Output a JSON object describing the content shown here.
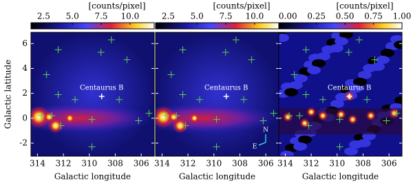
{
  "chart_data": [
    {
      "type": "heatmap",
      "colorbar_label": "[counts/pixel]",
      "clim": [
        1.4,
        12.1
      ],
      "cticks": [
        {
          "value": 2.5,
          "label": "2.5"
        },
        {
          "value": 5,
          "label": "5.0"
        },
        {
          "value": 7.5,
          "label": "7.5"
        },
        {
          "value": 10,
          "label": "10.0"
        }
      ],
      "xlabel": "Galactic longitude",
      "ylabel": "Galactic latitude",
      "xlim": [
        314.5,
        305
      ],
      "xticks": [
        314,
        312,
        310,
        308,
        306
      ],
      "ylim": [
        -3.05,
        6.9
      ],
      "yticks": [
        -2,
        0,
        2,
        4,
        6
      ],
      "x": [
        312.4,
        309.1,
        308.3,
        307.1,
        313.3,
        312.4,
        311.1,
        307.7,
        313.7,
        312.9,
        312.2,
        309.8,
        306.2,
        309.8,
        305.4
      ],
      "y": [
        5.5,
        5.3,
        6.3,
        4.7,
        3.5,
        1.9,
        1.5,
        1.5,
        0.2,
        0.2,
        -0.6,
        -0.1,
        -0.2,
        -2.3,
        0.4
      ],
      "annotation": "Centaurus B",
      "target": [
        309.05,
        1.75
      ]
    },
    {
      "type": "heatmap",
      "colorbar_label": "[counts/pixel]",
      "clim": [
        1.4,
        12.1
      ],
      "cticks": [
        {
          "value": 2.5,
          "label": "2.5"
        },
        {
          "value": 5,
          "label": "5.0"
        },
        {
          "value": 7.5,
          "label": "7.5"
        },
        {
          "value": 10,
          "label": "10.0"
        }
      ],
      "xlabel": "Galactic longitude",
      "xlim": [
        314.5,
        305
      ],
      "xticks": [
        314,
        312,
        310,
        308,
        306
      ],
      "ylim": [
        -3.05,
        6.9
      ],
      "x": [
        312.4,
        309.1,
        308.3,
        307.1,
        313.3,
        312.4,
        311.1,
        307.7,
        313.7,
        312.9,
        312.2,
        309.8,
        306.2,
        309.8,
        305.4
      ],
      "y": [
        5.5,
        5.3,
        6.3,
        4.7,
        3.5,
        1.9,
        1.5,
        1.5,
        0.2,
        0.2,
        -0.6,
        -0.1,
        -0.2,
        -2.3,
        0.4
      ],
      "annotation": "Centaurus B",
      "target": [
        309.05,
        1.75
      ],
      "compass": [
        "N",
        "E"
      ]
    },
    {
      "type": "heatmap",
      "colorbar_label": "[counts/pixel]",
      "clim": [
        -0.08,
        1.0
      ],
      "cticks": [
        {
          "value": 0,
          "label": "0.00"
        },
        {
          "value": 0.25,
          "label": "0.25"
        },
        {
          "value": 0.5,
          "label": "0.50"
        },
        {
          "value": 0.75,
          "label": "0.75"
        },
        {
          "value": 1,
          "label": "1.00"
        }
      ],
      "xlabel": "Galactic longitude",
      "xlim": [
        314.5,
        305
      ],
      "xticks": [
        314,
        312,
        310,
        308,
        306
      ],
      "ylim": [
        -3.05,
        6.9
      ],
      "x": [
        312.4,
        309.1,
        308.3,
        307.1,
        313.3,
        312.4,
        311.1,
        307.7,
        313.7,
        312.9,
        312.2,
        309.8,
        306.2,
        309.8,
        305.4
      ],
      "y": [
        5.5,
        5.3,
        6.3,
        4.7,
        3.5,
        1.9,
        1.5,
        1.5,
        0.2,
        0.2,
        -0.6,
        -0.1,
        -0.2,
        -2.3,
        0.4
      ],
      "annotation": "Centaurus B",
      "target": [
        309.05,
        1.75
      ]
    }
  ]
}
